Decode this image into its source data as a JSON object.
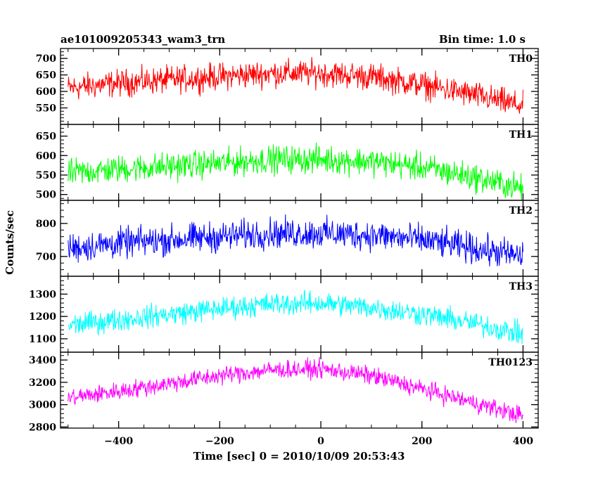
{
  "chart_data": {
    "type": "line",
    "title": "ae101009205343_wam3_trn",
    "bin_time": "Bin time: 1.0 s",
    "xlabel": "Time [sec] 0 = 2010/10/09 20:53:43",
    "ylabel": "Counts/sec",
    "xlim": [
      -515,
      430
    ],
    "x_ticks": [
      -400,
      -200,
      0,
      200,
      400
    ],
    "x_range": [
      -500,
      400
    ],
    "panels": [
      {
        "name": "TH0",
        "color": "#ff0000",
        "ylim": [
          500,
          730
        ],
        "y_ticks": [
          550,
          600,
          650,
          700
        ],
        "trend_x": [
          -500,
          -400,
          -200,
          -100,
          0,
          100,
          200,
          300,
          400
        ],
        "trend_y": [
          610,
          625,
          645,
          655,
          655,
          645,
          620,
          590,
          555
        ],
        "noise": 40
      },
      {
        "name": "TH1",
        "color": "#00ff00",
        "ylim": [
          485,
          680
        ],
        "y_ticks": [
          500,
          550,
          600,
          650
        ],
        "trend_x": [
          -500,
          -400,
          -200,
          -100,
          0,
          100,
          200,
          300,
          400
        ],
        "trend_y": [
          555,
          565,
          580,
          590,
          590,
          585,
          570,
          545,
          515
        ],
        "noise": 35
      },
      {
        "name": "TH2",
        "color": "#0000ff",
        "ylim": [
          640,
          870
        ],
        "y_ticks": [
          700,
          800
        ],
        "trend_x": [
          -500,
          -400,
          -200,
          -100,
          0,
          100,
          200,
          300,
          400
        ],
        "trend_y": [
          725,
          740,
          760,
          770,
          770,
          765,
          750,
          725,
          700
        ],
        "noise": 45
      },
      {
        "name": "TH3",
        "color": "#00ffff",
        "ylim": [
          1040,
          1380
        ],
        "y_ticks": [
          1100,
          1200,
          1300
        ],
        "trend_x": [
          -500,
          -400,
          -200,
          -100,
          0,
          100,
          200,
          300,
          400
        ],
        "trend_y": [
          1160,
          1185,
          1235,
          1255,
          1260,
          1240,
          1210,
          1170,
          1120
        ],
        "noise": 50
      },
      {
        "name": "TH0123",
        "color": "#ff00ff",
        "ylim": [
          2790,
          3470
        ],
        "y_ticks": [
          2800,
          3000,
          3200,
          3400
        ],
        "trend_x": [
          -500,
          -400,
          -200,
          -100,
          0,
          100,
          200,
          300,
          400
        ],
        "trend_y": [
          3060,
          3120,
          3260,
          3310,
          3320,
          3260,
          3140,
          3020,
          2900
        ],
        "noise": 80
      }
    ]
  }
}
